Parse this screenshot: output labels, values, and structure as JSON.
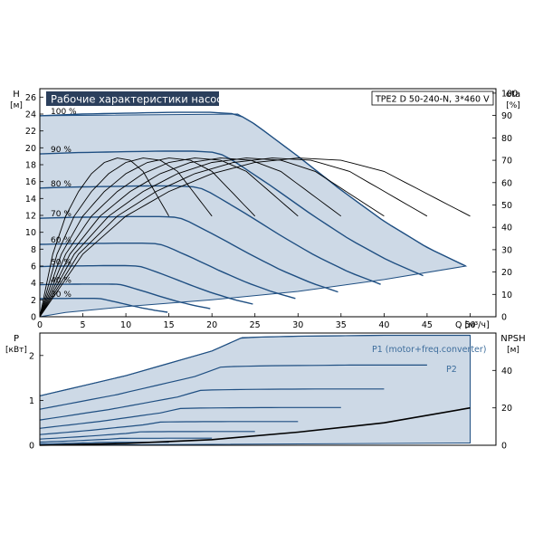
{
  "title": "Рабочие характеристики насоса",
  "model": "TPE2 D 50-240-N, 3*460 V",
  "colors": {
    "envelope_fill": "#cdd9e6",
    "envelope_edge": "#1f4f82",
    "curve_dark_blue": "#1f4f82",
    "curve_black": "#000000",
    "frame": "#000000",
    "title_bg": "#2b3f5c",
    "title_text": "#ffffff",
    "p1_label": "#3d6d9c"
  },
  "chart_data": [
    {
      "type": "line",
      "title": "Рабочие характеристики насоса",
      "subtitle": "TPE2 D 50-240-N, 3*460 V",
      "x_axis": {
        "label": "Q [м³/ч]",
        "range": [
          0,
          53
        ],
        "ticks": [
          "0",
          "5",
          "10",
          "15",
          "20",
          "25",
          "30",
          "35",
          "40",
          "45",
          "50"
        ]
      },
      "y_left": {
        "label": "H",
        "unit": "[м]",
        "range": [
          0,
          27
        ],
        "ticks": [
          "0",
          "2",
          "4",
          "6",
          "8",
          "10",
          "12",
          "14",
          "16",
          "18",
          "20",
          "22",
          "24",
          "26"
        ]
      },
      "y_right": {
        "label": "eta",
        "unit": "[%]",
        "range": [
          0,
          102
        ],
        "ticks": [
          "0",
          "10",
          "20",
          "30",
          "40",
          "50",
          "60",
          "70",
          "80",
          "90",
          "100"
        ]
      },
      "speed_labels": [
        "100 %",
        "90 %",
        "80 %",
        "70 %",
        "60 %",
        "50 %",
        "40 %",
        "30 %"
      ],
      "speed_fractions": [
        1.0,
        0.9,
        0.8,
        0.7,
        0.6,
        0.5,
        0.4,
        0.3
      ],
      "head_curve_100": {
        "Q": [
          0,
          5,
          10,
          15,
          20,
          23,
          25,
          30,
          35,
          40,
          45,
          49.5
        ],
        "H": [
          23.8,
          24.0,
          24.1,
          24.2,
          24.2,
          24.0,
          22.8,
          19.0,
          15.0,
          11.3,
          8.2,
          6.0
        ]
      },
      "efficiency_curve_100": {
        "Q": [
          0,
          5,
          10,
          15,
          20,
          25,
          30,
          35,
          40,
          45,
          50
        ],
        "eta": [
          0,
          28,
          45,
          56,
          64,
          69,
          71,
          70,
          65,
          55,
          45
        ]
      },
      "envelope": {
        "upper": {
          "Q": [
            0,
            23,
            25,
            30,
            35,
            40,
            45,
            49.5
          ],
          "H": [
            23.8,
            24.0,
            22.8,
            19.0,
            15.0,
            11.3,
            8.2,
            6.0
          ]
        },
        "lower": {
          "Q": [
            0,
            3,
            10,
            20,
            30,
            40,
            49.5
          ],
          "H": [
            0,
            0.5,
            1.2,
            2.0,
            3.0,
            4.4,
            6.0
          ]
        }
      }
    },
    {
      "type": "line",
      "x_axis": {
        "label": "Q [м³/ч]",
        "range": [
          0,
          53
        ]
      },
      "y_left": {
        "label": "P",
        "unit": "[кВт]",
        "range": [
          0,
          2.5
        ],
        "ticks": [
          "0",
          "1",
          "2"
        ]
      },
      "y_right": {
        "label": "NPSH",
        "unit": "[м]",
        "range": [
          0,
          60
        ],
        "ticks": [
          "0",
          "20",
          "40"
        ]
      },
      "legend": [
        "P1 (motor+freq.converter)",
        "P2"
      ],
      "power_P1_100": {
        "Q": [
          0,
          10,
          20,
          23.5,
          30,
          40,
          50
        ],
        "P": [
          1.1,
          1.55,
          2.1,
          2.4,
          2.43,
          2.45,
          2.45
        ]
      },
      "npsh_curve": {
        "Q": [
          0,
          10,
          20,
          30,
          40,
          50
        ],
        "NPSH": [
          0,
          1,
          3,
          7,
          12,
          20
        ]
      }
    }
  ]
}
